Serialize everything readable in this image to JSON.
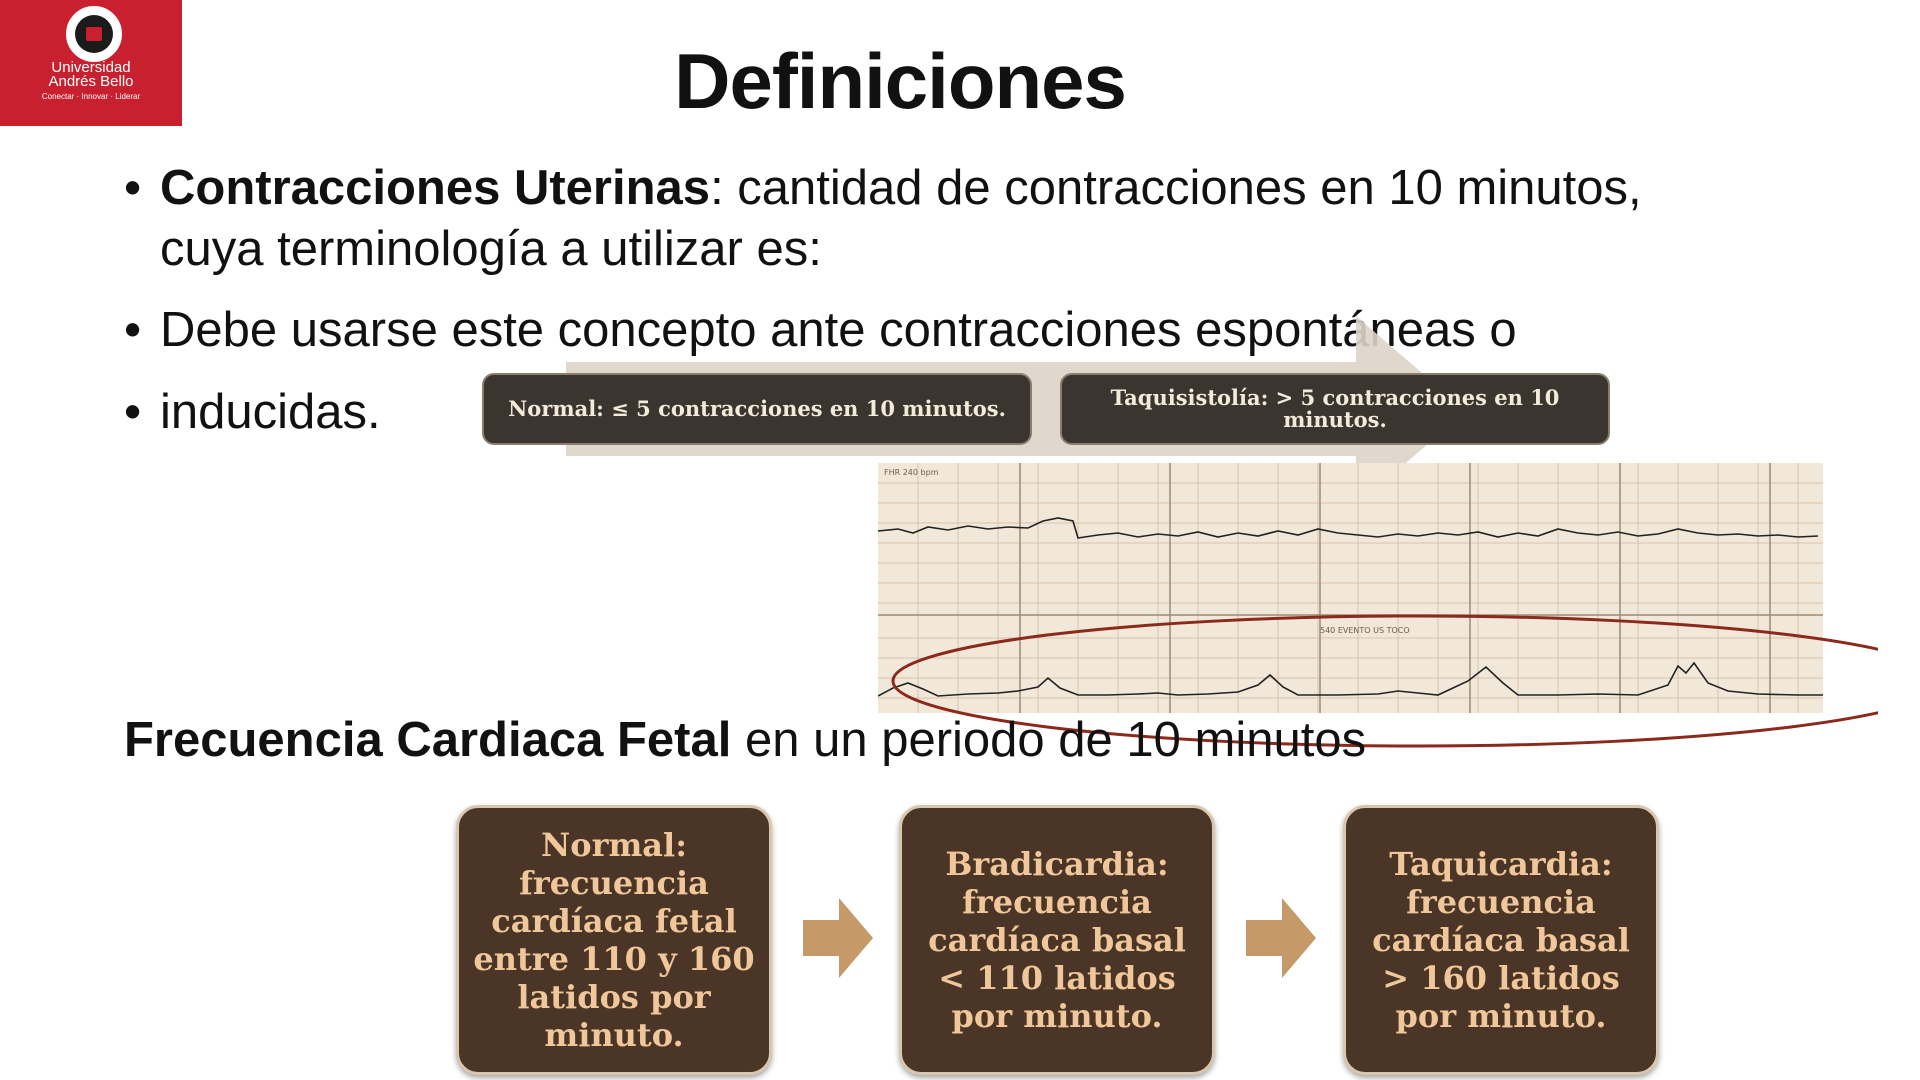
{
  "logo": {
    "line1": "Universidad",
    "line2": "Andrés Bello",
    "tagline": "Conectar · Innovar · Liderar"
  },
  "title": "Definiciones",
  "bullets": {
    "b1_bold": "Contracciones Uterinas",
    "b1_rest": ": cantidad de contracciones en 10 minutos, cuya terminología a utilizar es:",
    "b2": "Debe usarse este concepto ante contracciones espontáneas o",
    "b3": "inducidas.",
    "marker": "•"
  },
  "uterine_boxes": {
    "normal": "Normal: ≤ 5 contracciones en 10 minutos.",
    "taquisistolia": "Taquisistolía: > 5 contracciones en 10 minutos."
  },
  "ctg_strip": {
    "top_label": "FHR 240 bpm",
    "middle_label": "540 EVENTO US TOCO"
  },
  "fcf": {
    "bold": "Frecuencia Cardiaca Fetal",
    "rest": " en un periodo de 10 minutos"
  },
  "fcf_cards": [
    {
      "text": "Normal: frecuencia cardíaca fetal entre 110 y 160 latidos por minuto."
    },
    {
      "text": "Bradicardia: frecuencia cardíaca basal < 110 latidos por minuto."
    },
    {
      "text": "Taquicardia: frecuencia cardíaca basal > 160 latidos por minuto."
    }
  ],
  "colors": {
    "brand_red": "#c8202f",
    "pill_bg": "#3b3530",
    "card_bg": "#4a3526",
    "card_text": "#f0c79a",
    "arrow": "#c59a68",
    "ellipse": "#8b2a1c",
    "paper": "#f1e8da"
  }
}
